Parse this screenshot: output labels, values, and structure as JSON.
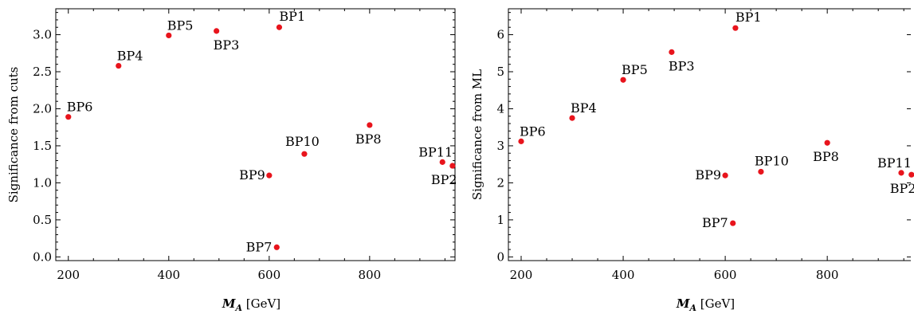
{
  "chart_data": [
    {
      "type": "scatter",
      "title": "",
      "xlabel": "M_A [GeV]",
      "xlabel_main": "M",
      "xlabel_sub": "A",
      "xlabel_unit": " [GeV]",
      "ylabel": "Significance from cuts",
      "xlim": [
        175,
        970
      ],
      "ylim": [
        -0.05,
        3.35
      ],
      "xticks": [
        200,
        400,
        600,
        800
      ],
      "yticks": [
        0.0,
        0.5,
        1.0,
        1.5,
        2.0,
        2.5,
        3.0
      ],
      "ytick_labels": [
        "0.0",
        "0.5",
        "1.0",
        "1.5",
        "2.0",
        "2.5",
        "3.0"
      ],
      "marker_color": "#e8141c",
      "grid": false,
      "points": [
        {
          "label": "BP1",
          "x": 620,
          "y": 3.1
        },
        {
          "label": "BP2",
          "x": 965,
          "y": 1.23
        },
        {
          "label": "BP3",
          "x": 495,
          "y": 3.05
        },
        {
          "label": "BP4",
          "x": 300,
          "y": 2.58
        },
        {
          "label": "BP5",
          "x": 400,
          "y": 2.99
        },
        {
          "label": "BP6",
          "x": 200,
          "y": 1.89
        },
        {
          "label": "BP7",
          "x": 615,
          "y": 0.13
        },
        {
          "label": "BP8",
          "x": 800,
          "y": 1.78
        },
        {
          "label": "BP9",
          "x": 600,
          "y": 1.1
        },
        {
          "label": "BP10",
          "x": 670,
          "y": 1.39
        },
        {
          "label": "BP11",
          "x": 945,
          "y": 1.28
        }
      ]
    },
    {
      "type": "scatter",
      "title": "",
      "xlabel": "M_A [GeV]",
      "xlabel_main": "M",
      "xlabel_sub": "A",
      "xlabel_unit": " [GeV]",
      "ylabel": "Significance from ML",
      "xlim": [
        175,
        970
      ],
      "ylim": [
        -0.1,
        6.7
      ],
      "xticks": [
        200,
        400,
        600,
        800
      ],
      "yticks": [
        0,
        1,
        2,
        3,
        4,
        5,
        6
      ],
      "ytick_labels": [
        "0",
        "1",
        "2",
        "3",
        "4",
        "5",
        "6"
      ],
      "marker_color": "#e8141c",
      "grid": false,
      "points": [
        {
          "label": "BP1",
          "x": 620,
          "y": 6.18
        },
        {
          "label": "BP2",
          "x": 965,
          "y": 2.22
        },
        {
          "label": "BP3",
          "x": 495,
          "y": 5.53
        },
        {
          "label": "BP4",
          "x": 300,
          "y": 3.75
        },
        {
          "label": "BP5",
          "x": 400,
          "y": 4.78
        },
        {
          "label": "BP6",
          "x": 200,
          "y": 3.12
        },
        {
          "label": "BP7",
          "x": 615,
          "y": 0.91
        },
        {
          "label": "BP8",
          "x": 800,
          "y": 3.08
        },
        {
          "label": "BP9",
          "x": 600,
          "y": 2.2
        },
        {
          "label": "BP10",
          "x": 670,
          "y": 2.3
        },
        {
          "label": "BP11",
          "x": 945,
          "y": 2.27
        }
      ]
    }
  ]
}
